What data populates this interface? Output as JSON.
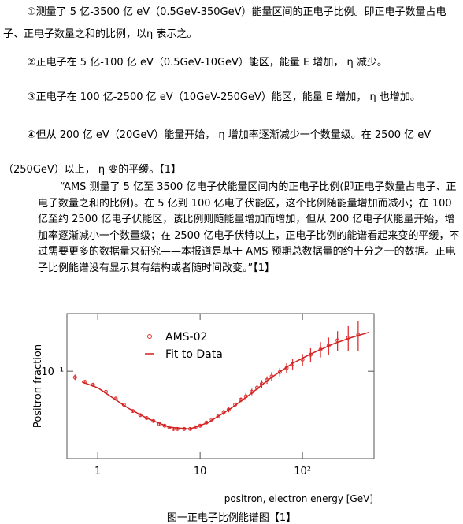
{
  "paragraphs": [
    "①测量了 5 亿-3500 亿 eV（0.5GeV-350GeV）能量区间的正电子比例。即正电子数量占电子、正电子数量之和的比例，以η 表示之。",
    "②正电子在 5 亿-100 亿 eV（0.5GeV-10GeV）能区，能量 E 增加， η 减少。",
    "③正电子在 100 亿-2500 亿 eV（10GeV-250GeV）能区，能量 E 增加， η 也增加。",
    "④但从 200 亿 eV（20GeV）能量开始， η 增加率逐渐减少一个数量级。在 2500 亿 eV（250GeV）以上， η 变的平缓。【1】"
  ],
  "quote": "“AMS 测量了 5 亿至 3500 亿电子伏能量区间内的正电子比例(即正电子数量占电子、正电子数量之和的比例)。在 5 亿到 100 亿电子伏能区，这个比例随能量增加而减小；在 100 亿至约 2500 亿电子伏能区，该比例则随能量增加而增加，但从 200 亿电子伏能量开始，增加率逐渐减小一个数量级；在 2500 亿电子伏特以上，正电子比例的能谱看起来变的平缓，不过需要更多的数据量来研究——本报道是基于 AMS 预期总数据量的约十分之一的数据。正电子比例能谱没有显示其有结构或者随时间改变。”【1】",
  "figure": {
    "chart_data": {
      "type": "scatter",
      "x_label": "positron, electron energy [GeV]",
      "y_label": "Positron fraction",
      "xlog": true,
      "ylog": true,
      "xlim": [
        0.5,
        500
      ],
      "ylim": [
        0.035,
        0.2
      ],
      "xticks": [
        1,
        10,
        {
          "value": 100,
          "label": "10²"
        }
      ],
      "yticks": [
        {
          "value": 0.1,
          "label": "10⁻¹"
        }
      ],
      "series": [
        {
          "name": "AMS-02",
          "color": "#e03030",
          "x": [
            0.6,
            0.75,
            0.9,
            1.2,
            1.5,
            1.8,
            2.2,
            2.6,
            3.0,
            3.5,
            4.0,
            4.5,
            5.0,
            5.5,
            6,
            7,
            8,
            9,
            10,
            11.5,
            13,
            15,
            17,
            19,
            22,
            25,
            28,
            32,
            36,
            40,
            45,
            50,
            60,
            70,
            80,
            100,
            120,
            150,
            180,
            220,
            280,
            350
          ],
          "values": [
            0.093,
            0.088,
            0.085,
            0.078,
            0.072,
            0.067,
            0.062,
            0.059,
            0.057,
            0.055,
            0.053,
            0.052,
            0.051,
            0.05,
            0.05,
            0.05,
            0.05,
            0.051,
            0.052,
            0.054,
            0.056,
            0.058,
            0.061,
            0.063,
            0.067,
            0.071,
            0.074,
            0.078,
            0.082,
            0.086,
            0.09,
            0.094,
            0.099,
            0.104,
            0.109,
            0.115,
            0.122,
            0.13,
            0.136,
            0.145,
            0.15,
            0.155
          ],
          "errors": [
            0.003,
            0.002,
            0.002,
            0.001,
            0.001,
            0.001,
            0.001,
            0.001,
            0.001,
            0.001,
            0.001,
            0.001,
            0.001,
            0.001,
            0.001,
            0.001,
            0.001,
            0.001,
            0.001,
            0.001,
            0.001,
            0.001,
            0.002,
            0.002,
            0.002,
            0.002,
            0.003,
            0.003,
            0.003,
            0.004,
            0.004,
            0.005,
            0.005,
            0.006,
            0.007,
            0.008,
            0.01,
            0.012,
            0.014,
            0.017,
            0.022,
            0.028
          ]
        },
        {
          "name": "Fit to Data",
          "color": "#d02020",
          "x": [
            0.7,
            1,
            2,
            3,
            5,
            8,
            12,
            20,
            30,
            50,
            80,
            120,
            200,
            300,
            450
          ],
          "values": [
            0.088,
            0.082,
            0.064,
            0.057,
            0.051,
            0.05,
            0.054,
            0.064,
            0.075,
            0.093,
            0.11,
            0.123,
            0.139,
            0.15,
            0.16
          ]
        }
      ]
    }
  },
  "caption": "图一正电子比例能谱图【1】"
}
